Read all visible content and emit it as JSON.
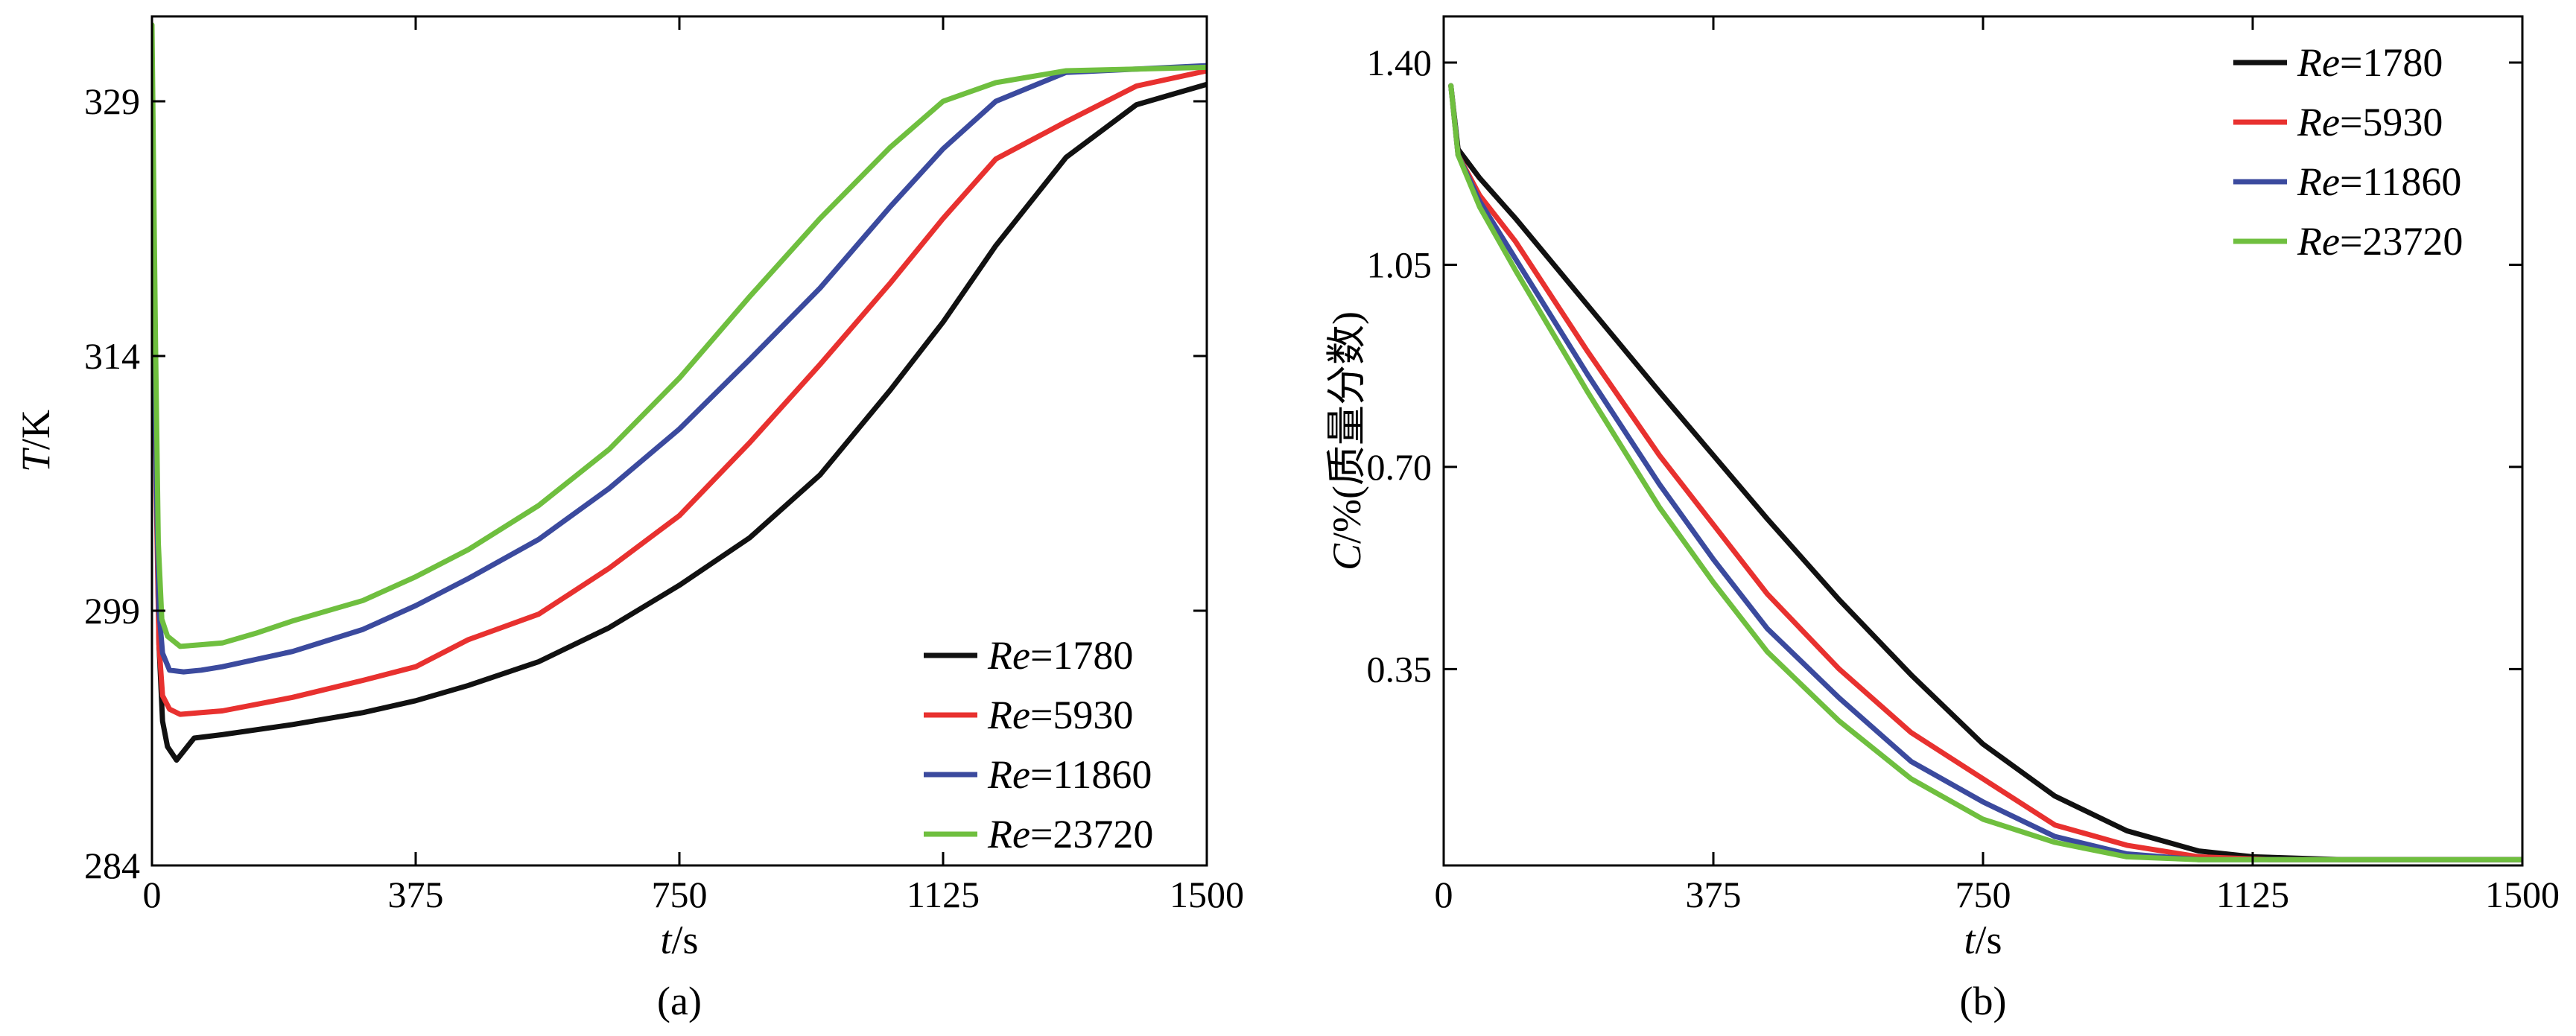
{
  "colors": {
    "Re=1780": "#111111",
    "Re=5930": "#e8312f",
    "Re=11860": "#3b4a9e",
    "Re=23720": "#6fbf3f"
  },
  "chart_data": [
    {
      "type": "line",
      "panel_label": "(a)",
      "xlabel_italic": "t",
      "xlabel_unit": "/s",
      "ylabel_italic": "T",
      "ylabel_unit": "/K",
      "xlim": [
        0,
        1500
      ],
      "ylim": [
        284,
        334
      ],
      "xticks": [
        0,
        375,
        750,
        1125,
        1500
      ],
      "xtick_labels": [
        "0",
        "375",
        "750",
        "1125",
        "1500"
      ],
      "yticks": [
        284,
        299,
        314,
        329
      ],
      "ytick_labels": [
        "284",
        "299",
        "314",
        "329"
      ],
      "grid": false,
      "legend_position": "bottom-right",
      "series": [
        {
          "name_italic": "Re",
          "name_value": "=1780",
          "points": [
            [
              0,
              330
            ],
            [
              6,
              308
            ],
            [
              10,
              297
            ],
            [
              15,
              292.5
            ],
            [
              22,
              291
            ],
            [
              35,
              290.2
            ],
            [
              60,
              291.5
            ],
            [
              100,
              291.7
            ],
            [
              200,
              292.3
            ],
            [
              300,
              293
            ],
            [
              375,
              293.7
            ],
            [
              450,
              294.6
            ],
            [
              550,
              296
            ],
            [
              650,
              298
            ],
            [
              750,
              300.5
            ],
            [
              850,
              303.3
            ],
            [
              950,
              307
            ],
            [
              1050,
              312
            ],
            [
              1125,
              316
            ],
            [
              1200,
              320.5
            ],
            [
              1300,
              325.7
            ],
            [
              1400,
              328.8
            ],
            [
              1500,
              330
            ]
          ]
        },
        {
          "name_italic": "Re",
          "name_value": "=5930",
          "points": [
            [
              0,
              330
            ],
            [
              6,
              306
            ],
            [
              10,
              297
            ],
            [
              15,
              294
            ],
            [
              25,
              293.2
            ],
            [
              40,
              292.9
            ],
            [
              70,
              293
            ],
            [
              100,
              293.1
            ],
            [
              200,
              293.9
            ],
            [
              300,
              294.9
            ],
            [
              375,
              295.7
            ],
            [
              450,
              297.3
            ],
            [
              550,
              298.8
            ],
            [
              650,
              301.5
            ],
            [
              750,
              304.6
            ],
            [
              850,
              308.9
            ],
            [
              950,
              313.5
            ],
            [
              1050,
              318.3
            ],
            [
              1125,
              322.1
            ],
            [
              1200,
              325.6
            ],
            [
              1300,
              327.8
            ],
            [
              1400,
              329.9
            ],
            [
              1500,
              330.8
            ]
          ]
        },
        {
          "name_italic": "Re",
          "name_value": "=11860",
          "points": [
            [
              0,
              330
            ],
            [
              6,
              307
            ],
            [
              10,
              299
            ],
            [
              15,
              296.5
            ],
            [
              25,
              295.5
            ],
            [
              45,
              295.4
            ],
            [
              70,
              295.5
            ],
            [
              100,
              295.7
            ],
            [
              200,
              296.6
            ],
            [
              300,
              297.9
            ],
            [
              375,
              299.3
            ],
            [
              450,
              300.9
            ],
            [
              550,
              303.2
            ],
            [
              650,
              306.2
            ],
            [
              750,
              309.7
            ],
            [
              850,
              313.8
            ],
            [
              950,
              318
            ],
            [
              1050,
              322.8
            ],
            [
              1125,
              326.2
            ],
            [
              1200,
              329
            ],
            [
              1300,
              330.7
            ],
            [
              1400,
              330.9
            ],
            [
              1500,
              331.1
            ]
          ]
        },
        {
          "name_italic": "Re",
          "name_value": "=23720",
          "points": [
            [
              0,
              333.5
            ],
            [
              5,
              315
            ],
            [
              9,
              303
            ],
            [
              14,
              298.5
            ],
            [
              22,
              297.5
            ],
            [
              40,
              296.9
            ],
            [
              70,
              297
            ],
            [
              100,
              297.1
            ],
            [
              150,
              297.7
            ],
            [
              200,
              298.4
            ],
            [
              300,
              299.6
            ],
            [
              375,
              301
            ],
            [
              450,
              302.6
            ],
            [
              550,
              305.2
            ],
            [
              650,
              308.5
            ],
            [
              750,
              312.7
            ],
            [
              850,
              317.5
            ],
            [
              950,
              322.1
            ],
            [
              1050,
              326.3
            ],
            [
              1125,
              329
            ],
            [
              1200,
              330.1
            ],
            [
              1300,
              330.8
            ],
            [
              1400,
              330.9
            ],
            [
              1500,
              331
            ]
          ]
        }
      ]
    },
    {
      "type": "line",
      "panel_label": "(b)",
      "xlabel_italic": "t",
      "xlabel_unit": "/s",
      "ylabel_italic": "C",
      "ylabel_unit": "/%(质量分数)",
      "xlim": [
        0,
        1500
      ],
      "ylim": [
        0.01,
        1.48
      ],
      "xticks": [
        0,
        375,
        750,
        1125,
        1500
      ],
      "xtick_labels": [
        "0",
        "375",
        "750",
        "1125",
        "1500"
      ],
      "yticks": [
        0.35,
        0.7,
        1.05,
        1.4
      ],
      "ytick_labels": [
        "0.35",
        "0.70",
        "1.05",
        "1.40"
      ],
      "grid": false,
      "legend_position": "top-right",
      "series": [
        {
          "name_italic": "Re",
          "name_value": "=1780",
          "points": [
            [
              10,
              1.36
            ],
            [
              20,
              1.25
            ],
            [
              50,
              1.2
            ],
            [
              100,
              1.13
            ],
            [
              200,
              0.98
            ],
            [
              300,
              0.83
            ],
            [
              375,
              0.72
            ],
            [
              450,
              0.61
            ],
            [
              550,
              0.47
            ],
            [
              650,
              0.34
            ],
            [
              750,
              0.22
            ],
            [
              850,
              0.13
            ],
            [
              950,
              0.07
            ],
            [
              1050,
              0.035
            ],
            [
              1125,
              0.025
            ],
            [
              1250,
              0.02
            ],
            [
              1350,
              0.02
            ],
            [
              1500,
              0.02
            ]
          ]
        },
        {
          "name_italic": "Re",
          "name_value": "=5930",
          "points": [
            [
              10,
              1.36
            ],
            [
              20,
              1.24
            ],
            [
              50,
              1.17
            ],
            [
              100,
              1.09
            ],
            [
              200,
              0.9
            ],
            [
              300,
              0.72
            ],
            [
              375,
              0.6
            ],
            [
              450,
              0.48
            ],
            [
              550,
              0.35
            ],
            [
              650,
              0.24
            ],
            [
              750,
              0.16
            ],
            [
              850,
              0.08
            ],
            [
              950,
              0.045
            ],
            [
              1050,
              0.025
            ],
            [
              1150,
              0.02
            ],
            [
              1300,
              0.02
            ],
            [
              1500,
              0.02
            ]
          ]
        },
        {
          "name_italic": "Re",
          "name_value": "=11860",
          "points": [
            [
              10,
              1.36
            ],
            [
              20,
              1.24
            ],
            [
              50,
              1.16
            ],
            [
              100,
              1.06
            ],
            [
              200,
              0.86
            ],
            [
              300,
              0.67
            ],
            [
              375,
              0.54
            ],
            [
              450,
              0.42
            ],
            [
              550,
              0.3
            ],
            [
              650,
              0.19
            ],
            [
              750,
              0.12
            ],
            [
              850,
              0.06
            ],
            [
              950,
              0.03
            ],
            [
              1050,
              0.02
            ],
            [
              1200,
              0.02
            ],
            [
              1500,
              0.02
            ]
          ]
        },
        {
          "name_italic": "Re",
          "name_value": "=23720",
          "points": [
            [
              10,
              1.36
            ],
            [
              20,
              1.24
            ],
            [
              50,
              1.15
            ],
            [
              100,
              1.04
            ],
            [
              200,
              0.83
            ],
            [
              300,
              0.63
            ],
            [
              375,
              0.5
            ],
            [
              450,
              0.38
            ],
            [
              550,
              0.26
            ],
            [
              650,
              0.16
            ],
            [
              750,
              0.09
            ],
            [
              850,
              0.05
            ],
            [
              950,
              0.025
            ],
            [
              1050,
              0.02
            ],
            [
              1200,
              0.02
            ],
            [
              1500,
              0.02
            ]
          ]
        }
      ]
    }
  ]
}
